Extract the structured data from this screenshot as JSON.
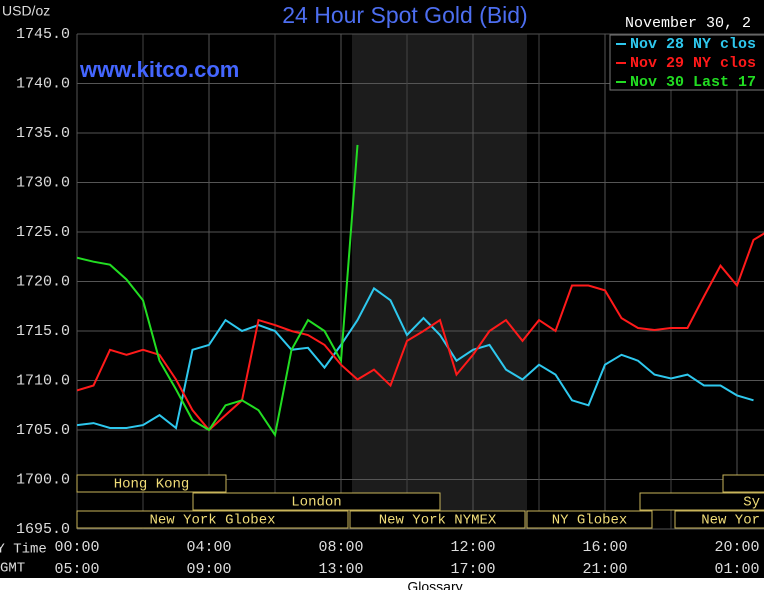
{
  "chart_data": {
    "type": "line",
    "title": "24 Hour Spot Gold (Bid)",
    "y_label": "USD/oz",
    "watermark": "www.kitco.com",
    "date_label": "November 30, 2",
    "x_label": "NY Time",
    "x2_label": "GMT",
    "footer": "Glossary",
    "x": [
      0,
      0.5,
      1,
      1.5,
      2,
      2.5,
      3,
      3.5,
      4,
      4.5,
      5,
      5.5,
      6,
      6.5,
      7,
      7.5,
      8,
      8.5,
      9,
      9.5,
      10,
      10.5,
      11,
      11.5,
      12,
      12.5,
      13,
      13.5,
      14,
      14.5,
      15,
      15.5,
      16,
      16.5,
      17,
      17.5,
      18,
      18.5,
      19,
      19.5,
      20,
      20.5,
      21
    ],
    "xlim": [
      0,
      20.8
    ],
    "xticks": [
      {
        "value": 0,
        "label": "00:00"
      },
      {
        "value": 4,
        "label": "04:00"
      },
      {
        "value": 8,
        "label": "08:00"
      },
      {
        "value": 12,
        "label": "12:00"
      },
      {
        "value": 16,
        "label": "16:00"
      },
      {
        "value": 20,
        "label": "20:00"
      }
    ],
    "x2ticks": [
      {
        "value": 0,
        "label": "05:00"
      },
      {
        "value": 4,
        "label": "09:00"
      },
      {
        "value": 8,
        "label": "13:00"
      },
      {
        "value": 12,
        "label": "17:00"
      },
      {
        "value": 16,
        "label": "21:00"
      },
      {
        "value": 20,
        "label": "01:00"
      }
    ],
    "ylim": [
      1695,
      1745
    ],
    "yticks": [
      {
        "value": 1695,
        "label": "1695.0"
      },
      {
        "value": 1700,
        "label": "1700.0"
      },
      {
        "value": 1705,
        "label": "1705.0"
      },
      {
        "value": 1710,
        "label": "1710.0"
      },
      {
        "value": 1715,
        "label": "1715.0"
      },
      {
        "value": 1720,
        "label": "1720.0"
      },
      {
        "value": 1725,
        "label": "1725.0"
      },
      {
        "value": 1730,
        "label": "1730.0"
      },
      {
        "value": 1735,
        "label": "1735.0"
      },
      {
        "value": 1740,
        "label": "1740.0"
      },
      {
        "value": 1745,
        "label": "1745.0"
      }
    ],
    "grid": true,
    "legend": "top-right",
    "series": [
      {
        "name": "Nov 28 NY clos",
        "color": "#2ec8ee",
        "values": [
          1705.5,
          1705.7,
          1705.2,
          1705.2,
          1705.5,
          1706.5,
          1705.2,
          1713.1,
          1713.6,
          1716.1,
          1715,
          1715.6,
          1715,
          1713.1,
          1713.3,
          1711.3,
          1713.6,
          1716.1,
          1719.3,
          1718.1,
          1714.6,
          1716.3,
          1714.6,
          1712,
          1713.1,
          1713.6,
          1711.1,
          1710.1,
          1711.6,
          1710.6,
          1708,
          1707.5,
          1711.6,
          1712.6,
          1712,
          1710.6,
          1710.2,
          1710.6,
          1709.5,
          1709.5,
          1708.5,
          1708,
          null
        ]
      },
      {
        "name": "Nov 29 NY clos",
        "color": "#ff1a1a",
        "values": [
          1709,
          1709.5,
          1713.1,
          1712.6,
          1713.1,
          1712.6,
          1710.1,
          1707,
          1705,
          1706.5,
          1708,
          1716.1,
          1715.6,
          1715,
          1714.6,
          1713.6,
          1711.6,
          1710.1,
          1711.1,
          1709.5,
          1714,
          1715,
          1716.1,
          1710.6,
          1712.6,
          1715,
          1716.1,
          1714,
          1716.1,
          1715,
          1719.6,
          1719.6,
          1719.1,
          1716.3,
          1715.3,
          1715.1,
          1715.3,
          1715.3,
          1718.5,
          1721.6,
          1719.6,
          1724.2,
          1725.2
        ]
      },
      {
        "name": "Nov 30 Last 17",
        "color": "#22dd22",
        "values": [
          1722.4,
          1722,
          1721.7,
          1720.2,
          1718.1,
          1712,
          1709.1,
          1706,
          1705,
          1707.5,
          1708,
          1707,
          1704.5,
          1713.1,
          1716.1,
          1715,
          1712,
          1733.8,
          null,
          null,
          null,
          null,
          null,
          null,
          null,
          null,
          null,
          null,
          null,
          null,
          null,
          null,
          null,
          null,
          null,
          null,
          null,
          null,
          null,
          null,
          null,
          null,
          null
        ]
      }
    ],
    "sessions": [
      {
        "label": "Hong Kong"
      },
      {
        "label": "London"
      },
      {
        "label": "New York Globex"
      },
      {
        "label": "New York NYMEX"
      },
      {
        "label": "NY Globex"
      },
      {
        "label": "Sy"
      },
      {
        "label": "New Yor"
      }
    ]
  }
}
